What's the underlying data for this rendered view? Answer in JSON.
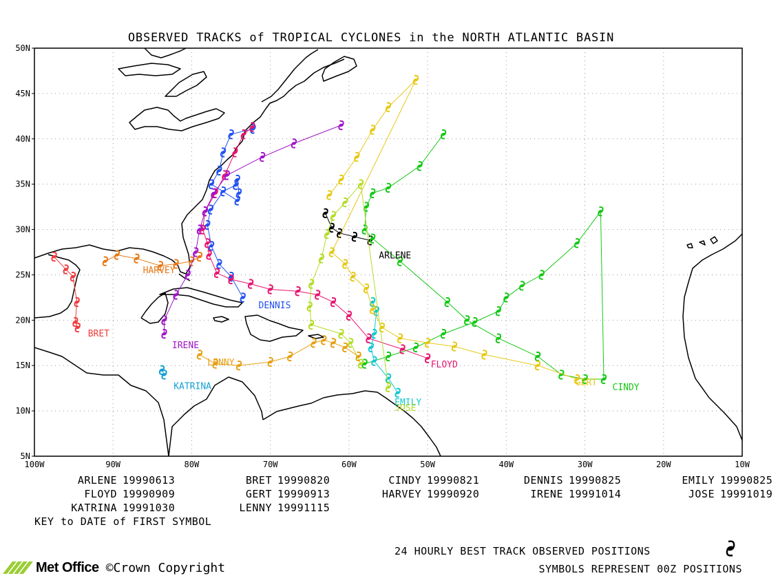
{
  "title": "OBSERVED TRACKS of TROPICAL CYCLONES in the NORTH ATLANTIC BASIN",
  "lat_ticks": [
    "50N",
    "45N",
    "40N",
    "35N",
    "30N",
    "25N",
    "20N",
    "15N",
    "10N",
    "5N"
  ],
  "lon_ticks": [
    "100W",
    "90W",
    "80W",
    "70W",
    "60W",
    "50W",
    "40W",
    "30W",
    "20W",
    "10W"
  ],
  "storms": [
    {
      "name": "ARLENE",
      "date": "19990613",
      "color": "#000000"
    },
    {
      "name": "BRET",
      "date": "19990820",
      "color": "#f03c3c"
    },
    {
      "name": "CINDY",
      "date": "19990821",
      "color": "#14c814"
    },
    {
      "name": "DENNIS",
      "date": "19990825",
      "color": "#2050f0"
    },
    {
      "name": "EMILY",
      "date": "19990825",
      "color": "#14c8d2"
    },
    {
      "name": "FLOYD",
      "date": "19990909",
      "color": "#e6146e"
    },
    {
      "name": "GERT",
      "date": "19990913",
      "color": "#e6c814"
    },
    {
      "name": "HARVEY",
      "date": "19990920",
      "color": "#e67814"
    },
    {
      "name": "IRENE",
      "date": "19991014",
      "color": "#a014c8"
    },
    {
      "name": "JOSE",
      "date": "19991019",
      "color": "#b4dc28"
    },
    {
      "name": "KATRINA",
      "date": "19991030",
      "color": "#14a0d2"
    },
    {
      "name": "LENNY",
      "date": "19991115",
      "color": "#e6a014"
    }
  ],
  "key_note": "KEY to DATE of FIRST SYMBOL",
  "footer": {
    "line1": "24 HOURLY BEST TRACK OBSERVED POSITIONS",
    "line2": "SYMBOLS REPRESENT 00Z POSITIONS",
    "brand": "Met Office",
    "copyright": "©Crown Copyright"
  },
  "map": {
    "lon_range": [
      -100,
      -10
    ],
    "lat_range": [
      5,
      50
    ],
    "grid": "dotted",
    "tracks": {
      "ARLENE": [
        [
          -63.0,
          31.8
        ],
        [
          -62.2,
          30.2
        ],
        [
          -61.2,
          29.6
        ],
        [
          -59.3,
          29.2
        ],
        [
          -57.3,
          28.8
        ]
      ],
      "BRET": [
        [
          -97.5,
          27.0
        ],
        [
          -96.0,
          25.6
        ],
        [
          -95.1,
          24.8
        ],
        [
          -94.6,
          22.0
        ],
        [
          -94.8,
          19.8
        ],
        [
          -94.5,
          19.2
        ]
      ],
      "CINDY": [
        [
          -58.0,
          15.2
        ],
        [
          -55.0,
          16.0
        ],
        [
          -51.5,
          17.0
        ],
        [
          -48.0,
          18.5
        ],
        [
          -44.0,
          19.8
        ],
        [
          -41.0,
          21.0
        ],
        [
          -40.0,
          22.5
        ],
        [
          -38.0,
          23.8
        ],
        [
          -35.5,
          25.0
        ],
        [
          -31.0,
          28.5
        ],
        [
          -28.0,
          32.0
        ],
        [
          -27.6,
          13.5
        ],
        [
          -30.0,
          13.5
        ],
        [
          -33.0,
          14.0
        ],
        [
          -36.0,
          16.0
        ],
        [
          -41.0,
          18.0
        ],
        [
          -45.0,
          20.0
        ],
        [
          -47.5,
          22.0
        ],
        [
          -53.5,
          26.5
        ],
        [
          -57.0,
          29.0
        ],
        [
          -58.0,
          30.0
        ],
        [
          -57.8,
          32.5
        ],
        [
          -57.0,
          34.0
        ],
        [
          -55.0,
          34.6
        ],
        [
          -51.0,
          37.0
        ],
        [
          -48.0,
          40.5
        ]
      ],
      "DENNIS": [
        [
          -73.5,
          22.5
        ],
        [
          -75.0,
          24.8
        ],
        [
          -76.5,
          26.2
        ],
        [
          -77.5,
          28.2
        ],
        [
          -78.0,
          30.5
        ],
        [
          -77.6,
          32.2
        ],
        [
          -76.0,
          34.2
        ],
        [
          -74.4,
          34.9
        ],
        [
          -74.2,
          35.5
        ],
        [
          -74.0,
          34.0
        ],
        [
          -74.2,
          33.2
        ],
        [
          -77.5,
          35.0
        ],
        [
          -76.5,
          36.5
        ],
        [
          -76.0,
          38.5
        ],
        [
          -75.0,
          40.5
        ],
        [
          -72.2,
          41.1
        ]
      ],
      "EMILY": [
        [
          -57.0,
          22.0
        ],
        [
          -56.5,
          21.0
        ],
        [
          -56.8,
          18.5
        ],
        [
          -57.2,
          17.0
        ],
        [
          -56.8,
          15.5
        ],
        [
          -55.0,
          13.6
        ],
        [
          -53.8,
          12.0
        ]
      ],
      "FLOYD": [
        [
          -50.0,
          15.8
        ],
        [
          -53.2,
          16.8
        ],
        [
          -57.5,
          18.0
        ],
        [
          -60.0,
          20.5
        ],
        [
          -62.0,
          22.0
        ],
        [
          -64.0,
          22.8
        ],
        [
          -66.5,
          23.2
        ],
        [
          -70.0,
          23.4
        ],
        [
          -72.5,
          24.0
        ],
        [
          -75.0,
          24.5
        ],
        [
          -76.8,
          25.2
        ],
        [
          -77.8,
          27.2
        ],
        [
          -78.0,
          28.5
        ],
        [
          -78.6,
          30.0
        ],
        [
          -78.3,
          32.0
        ],
        [
          -77.0,
          34.0
        ],
        [
          -75.8,
          36.0
        ],
        [
          -74.5,
          38.5
        ],
        [
          -73.4,
          40.5
        ],
        [
          -72.3,
          41.3
        ]
      ],
      "GERT": [
        [
          -62.5,
          33.8
        ],
        [
          -61.0,
          35.5
        ],
        [
          -59.0,
          38.0
        ],
        [
          -57.0,
          41.0
        ],
        [
          -55.0,
          43.5
        ],
        [
          -51.5,
          46.5
        ],
        [
          -62.2,
          27.5
        ],
        [
          -60.5,
          26.2
        ],
        [
          -59.5,
          24.8
        ],
        [
          -57.8,
          23.5
        ],
        [
          -57.0,
          21.2
        ],
        [
          -55.8,
          19.2
        ],
        [
          -53.5,
          18.0
        ],
        [
          -50.0,
          17.5
        ],
        [
          -46.6,
          17.1
        ],
        [
          -42.8,
          16.2
        ],
        [
          -36.0,
          15.0
        ],
        [
          -31.0,
          13.5
        ]
      ],
      "HARVEY": [
        [
          -91.0,
          26.5
        ],
        [
          -89.5,
          27.2
        ],
        [
          -87.0,
          26.8
        ],
        [
          -84.0,
          26.0
        ],
        [
          -82.0,
          26.2
        ],
        [
          -80.0,
          26.5
        ],
        [
          -79.0,
          27.0
        ]
      ],
      "IRENE": [
        [
          -83.5,
          18.5
        ],
        [
          -83.5,
          20.0
        ],
        [
          -82.0,
          22.8
        ],
        [
          -80.5,
          25.0
        ],
        [
          -79.5,
          27.5
        ],
        [
          -79.0,
          30.0
        ],
        [
          -78.3,
          32.0
        ],
        [
          -77.2,
          34.0
        ],
        [
          -75.5,
          36.0
        ],
        [
          -71.0,
          38.0
        ],
        [
          -67.0,
          39.5
        ],
        [
          -61.0,
          41.5
        ]
      ],
      "JOSE": [
        [
          -58.5,
          15.2
        ],
        [
          -59.8,
          17.5
        ],
        [
          -61.0,
          18.5
        ],
        [
          -64.8,
          19.5
        ],
        [
          -65.0,
          21.5
        ],
        [
          -64.8,
          24.0
        ],
        [
          -63.5,
          26.8
        ],
        [
          -62.8,
          29.5
        ],
        [
          -62.0,
          31.5
        ],
        [
          -60.5,
          33.0
        ],
        [
          -58.5,
          35.0
        ],
        [
          -55.0,
          12.6
        ]
      ],
      "KATRINA": [
        [
          -83.5,
          14.0
        ],
        [
          -83.8,
          14.5
        ]
      ],
      "LENNY": [
        [
          -79.0,
          16.2
        ],
        [
          -77.0,
          15.2
        ],
        [
          -74.0,
          15.0
        ],
        [
          -70.0,
          15.4
        ],
        [
          -67.5,
          16.0
        ],
        [
          -64.5,
          17.5
        ],
        [
          -63.2,
          17.8
        ],
        [
          -62.0,
          17.5
        ],
        [
          -60.5,
          17.0
        ],
        [
          -58.8,
          16.0
        ]
      ]
    },
    "labels": [
      {
        "storm": "ARLENE",
        "lon": -56.2,
        "lat": 26.8
      },
      {
        "storm": "BRET",
        "lon": -93.2,
        "lat": 18.2
      },
      {
        "storm": "CINDY",
        "lon": -26.5,
        "lat": 12.3
      },
      {
        "storm": "DENNIS",
        "lon": -71.5,
        "lat": 21.3
      },
      {
        "storm": "EMILY",
        "lon": -54.2,
        "lat": 10.6
      },
      {
        "storm": "FLOYD",
        "lon": -49.6,
        "lat": 14.8
      },
      {
        "storm": "GERT",
        "lon": -31.2,
        "lat": 12.8
      },
      {
        "storm": "HARVEY",
        "lon": -86.2,
        "lat": 25.2
      },
      {
        "storm": "IRENE",
        "lon": -82.5,
        "lat": 16.9
      },
      {
        "storm": "JOSE",
        "lon": -54.2,
        "lat": 10.0
      },
      {
        "storm": "KATRINA",
        "lon": -82.3,
        "lat": 12.4
      },
      {
        "storm": "LENNY",
        "lon": -78.0,
        "lat": 15.0
      }
    ]
  }
}
